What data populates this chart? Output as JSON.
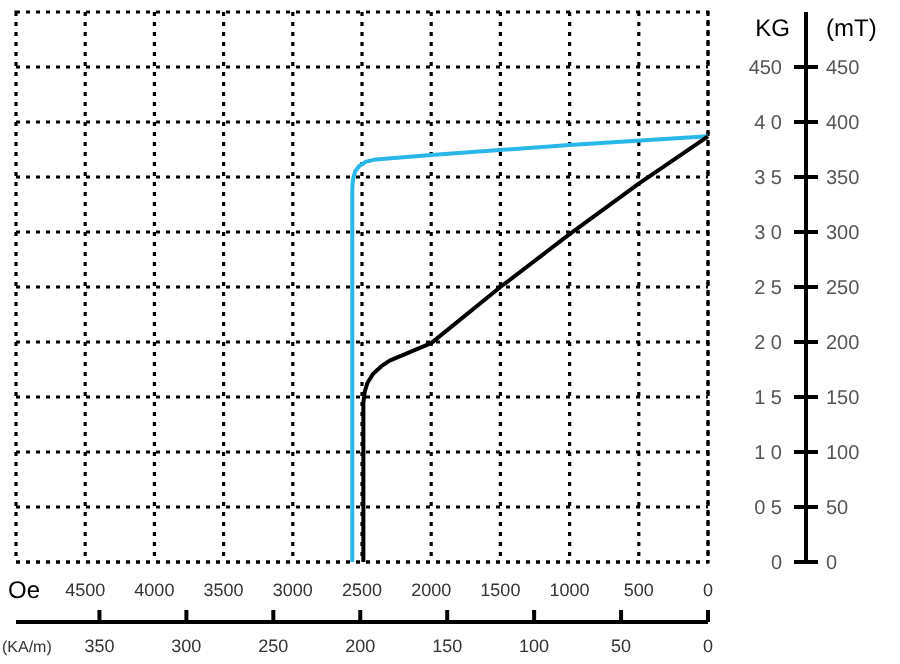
{
  "chart_data": {
    "type": "line",
    "xlabel": "Oe",
    "x2label": "(KA/m)",
    "ylabel": "KG",
    "y2label": "(mT)",
    "xlim": [
      5000,
      0
    ],
    "xticks": [
      4500,
      4000,
      3500,
      3000,
      2500,
      2000,
      1500,
      1000,
      500,
      0
    ],
    "x2lim": [
      398,
      0
    ],
    "x2ticks": [
      350,
      300,
      250,
      200,
      150,
      100,
      50,
      0
    ],
    "ylim": [
      0,
      500
    ],
    "yticks": [
      {
        "value": 0,
        "label": "0"
      },
      {
        "value": 50,
        "label": "0 5"
      },
      {
        "value": 100,
        "label": "1 0"
      },
      {
        "value": 150,
        "label": "1 5"
      },
      {
        "value": 200,
        "label": "2 0"
      },
      {
        "value": 250,
        "label": "2 5"
      },
      {
        "value": 300,
        "label": "3 0"
      },
      {
        "value": 350,
        "label": "3 5"
      },
      {
        "value": 400,
        "label": "4 0"
      },
      {
        "value": 450,
        "label": "450"
      }
    ],
    "y2lim": [
      0,
      500
    ],
    "y2ticks": [
      0,
      50,
      100,
      150,
      200,
      250,
      300,
      350,
      400,
      450
    ],
    "grid": true,
    "series": [
      {
        "color": "#29b6e8",
        "x": [
          2570,
          2570,
          2565,
          2550,
          2520,
          2470,
          2400,
          2000,
          1000,
          0
        ],
        "values": [
          0,
          340,
          348,
          355,
          360,
          364,
          366,
          370,
          379,
          387
        ]
      },
      {
        "color": "#000000",
        "x": [
          2490,
          2490,
          2480,
          2460,
          2420,
          2360,
          2300,
          2000,
          1500,
          1000,
          500,
          0
        ],
        "values": [
          0,
          145,
          155,
          163,
          171,
          178,
          183,
          199,
          250,
          298,
          344,
          387
        ]
      }
    ]
  }
}
